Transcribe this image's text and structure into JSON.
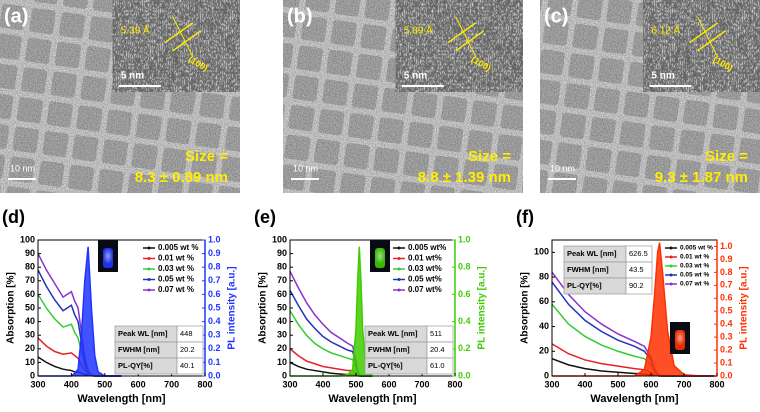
{
  "panels": [
    {
      "label": "(a)",
      "spacing": "5.39 Å",
      "plane": "(100)",
      "inset_scale": "5 nm",
      "scale": "10 nm",
      "size_label": "Size =",
      "size": "8.3 ± 0.89 nm"
    },
    {
      "label": "(b)",
      "spacing": "5.89 Å",
      "plane": "(100)",
      "inset_scale": "5 nm",
      "scale": "10 nm",
      "size_label": "Size =",
      "size": "8.8 ± 1.39 nm"
    },
    {
      "label": "(c)",
      "spacing": "6.12 Å",
      "plane": "(100)",
      "inset_scale": "5 nm",
      "scale": "10 nm",
      "size_label": "Size =",
      "size": "9.3 ± 1.87 nm"
    }
  ],
  "chart_data": [
    {
      "type": "line",
      "panel_label": "(d)",
      "x_label": "Wavelength [nm]",
      "y_label": "Absorption [%]",
      "y2_label": "PL intensity [a.u.]",
      "x": [
        300,
        325,
        350,
        375,
        400,
        410,
        420,
        430,
        440,
        450,
        460,
        470,
        480,
        500,
        550
      ],
      "series": [
        {
          "name": "0.005 wt %",
          "color": "#111111",
          "values": [
            14,
            10,
            7,
            5,
            4,
            3,
            3,
            2,
            1,
            0.5,
            0.2,
            0,
            0,
            0,
            0
          ]
        },
        {
          "name": "0.01 wt %",
          "color": "#e8202a",
          "values": [
            28,
            22,
            18,
            16,
            17,
            15,
            13,
            8,
            4,
            1,
            0.3,
            0,
            0,
            0,
            0
          ]
        },
        {
          "name": "0.03 wt %",
          "color": "#33cc33",
          "values": [
            60,
            50,
            42,
            36,
            38,
            32,
            28,
            18,
            8,
            2,
            0.5,
            0,
            0,
            0,
            0
          ]
        },
        {
          "name": "0.05 wt %",
          "color": "#2233bb",
          "values": [
            78,
            66,
            56,
            48,
            52,
            45,
            40,
            25,
            10,
            3,
            1,
            0,
            0,
            0,
            0
          ]
        },
        {
          "name": "0.07 wt %",
          "color": "#8833cc",
          "values": [
            90,
            78,
            68,
            58,
            62,
            55,
            50,
            32,
            14,
            4,
            1,
            0,
            0,
            0,
            0
          ]
        },
        {
          "color": "#1f35ff",
          "axis": "y2",
          "fill": true,
          "values": [
            0,
            0,
            0,
            0,
            0,
            0.02,
            0.05,
            0.3,
            0.7,
            0.95,
            0.5,
            0.15,
            0.03,
            0,
            0
          ]
        }
      ],
      "xlim": [
        300,
        800
      ],
      "xticks": [
        300,
        400,
        500,
        600,
        700,
        800
      ],
      "ylim": [
        0,
        100
      ],
      "yticks": [
        0,
        10,
        20,
        30,
        40,
        50,
        60,
        70,
        80,
        90,
        100
      ],
      "y2lim": [
        0,
        1
      ],
      "y2ticks": [
        {
          "value": 0,
          "label": "0.0"
        },
        0.1,
        0.2,
        0.3,
        0.4,
        0.5,
        0.6,
        0.7,
        0.8,
        0.9,
        {
          "value": 1,
          "label": "1.0"
        }
      ],
      "legend": "upper right",
      "table": [
        [
          "Peak WL [nm]",
          "448"
        ],
        [
          "FWHM [nm]",
          "20.2"
        ],
        [
          "PL-QY[%]",
          "40.1"
        ]
      ]
    },
    {
      "type": "line",
      "panel_label": "(e)",
      "x_label": "Wavelength [nm]",
      "y_label": "Absorption [%]",
      "y2_label": "PL intensity [a.u.]",
      "x": [
        300,
        325,
        350,
        375,
        400,
        425,
        450,
        475,
        490,
        500,
        505,
        510,
        515,
        520,
        530,
        550
      ],
      "series": [
        {
          "name": "0.005 wt%",
          "color": "#111111",
          "values": [
            10,
            7,
            5,
            4,
            3,
            2,
            1.5,
            1,
            1,
            0.5,
            0.2,
            0,
            0,
            0,
            0,
            0
          ]
        },
        {
          "name": "0.01 wt%",
          "color": "#e8202a",
          "values": [
            20,
            15,
            11,
            9,
            7,
            6,
            5,
            4,
            4,
            2,
            1,
            0.3,
            0,
            0,
            0,
            0
          ]
        },
        {
          "name": "0.03 wt%",
          "color": "#33cc33",
          "values": [
            48,
            38,
            30,
            24,
            20,
            17,
            15,
            13,
            12,
            6,
            2,
            0.5,
            0,
            0,
            0,
            0
          ]
        },
        {
          "name": "0.05 wt%",
          "color": "#2233bb",
          "values": [
            63,
            52,
            42,
            35,
            29,
            25,
            22,
            19,
            18,
            9,
            3,
            1,
            0,
            0,
            0,
            0
          ]
        },
        {
          "name": "0.07 wt%",
          "color": "#8833cc",
          "values": [
            77,
            65,
            54,
            45,
            38,
            32,
            28,
            24,
            22,
            11,
            4,
            1,
            0,
            0,
            0,
            0
          ]
        },
        {
          "color": "#3fcc00",
          "axis": "y2",
          "fill": true,
          "values": [
            0,
            0,
            0,
            0,
            0,
            0,
            0,
            0.01,
            0.05,
            0.35,
            0.7,
            0.95,
            0.7,
            0.35,
            0.05,
            0
          ]
        }
      ],
      "xlim": [
        300,
        800
      ],
      "xticks": [
        300,
        400,
        500,
        600,
        700,
        800
      ],
      "ylim": [
        0,
        100
      ],
      "yticks": [
        0,
        10,
        20,
        30,
        40,
        50,
        60,
        70,
        80,
        90,
        100
      ],
      "y2lim": [
        0,
        1
      ],
      "y2ticks": [
        {
          "value": 0,
          "label": "0.0"
        },
        0.2,
        0.4,
        0.6,
        0.8,
        {
          "value": 1,
          "label": "1.0"
        }
      ],
      "legend": "upper right",
      "table": [
        [
          "Peak WL [nm]",
          "511"
        ],
        [
          "FWHM [nm]",
          "20.4"
        ],
        [
          "PL-QY[%]",
          "61.0"
        ]
      ]
    },
    {
      "type": "line",
      "panel_label": "(f)",
      "x_label": "Wavelength [nm]",
      "y_label": "Absorption [%]",
      "y2_label": "PL intensity [a.u.]",
      "x": [
        300,
        350,
        400,
        450,
        500,
        550,
        580,
        600,
        610,
        620,
        626,
        635,
        650,
        670,
        700,
        750,
        800
      ],
      "series": [
        {
          "name": "0.005 wt %",
          "color": "#111111",
          "values": [
            14,
            9,
            6,
            4,
            3,
            2,
            1.5,
            1,
            0.5,
            0.2,
            0,
            0,
            0,
            0,
            0,
            0,
            0
          ]
        },
        {
          "name": "0.01 wt %",
          "color": "#e8202a",
          "values": [
            26,
            18,
            13,
            10,
            8,
            6,
            5,
            3,
            1,
            0.3,
            0,
            0,
            0,
            0,
            0,
            0,
            0
          ]
        },
        {
          "name": "0.03 wt %",
          "color": "#33cc33",
          "values": [
            58,
            42,
            32,
            25,
            20,
            16,
            14,
            9,
            3,
            1,
            0.3,
            0,
            0,
            0,
            0,
            0,
            0
          ]
        },
        {
          "name": "0.05 wt %",
          "color": "#2233bb",
          "values": [
            76,
            58,
            45,
            36,
            29,
            24,
            20,
            13,
            5,
            1.5,
            0.5,
            0,
            0,
            0,
            0,
            0,
            0
          ]
        },
        {
          "name": "0.07 wt %",
          "color": "#8833cc",
          "values": [
            84,
            66,
            52,
            42,
            34,
            28,
            24,
            15,
            6,
            2,
            0.5,
            0,
            0,
            0,
            0,
            0,
            0
          ]
        },
        {
          "color": "#ff3000",
          "axis": "y2",
          "fill": true,
          "values": [
            0,
            0,
            0,
            0,
            0,
            0,
            0.05,
            0.3,
            0.6,
            0.95,
            1.03,
            0.8,
            0.35,
            0.08,
            0.01,
            0,
            0
          ]
        }
      ],
      "xlim": [
        300,
        800
      ],
      "xticks": [
        300,
        400,
        500,
        600,
        700,
        800
      ],
      "ylim": [
        0,
        110
      ],
      "yticks": [
        0,
        20,
        40,
        60,
        80,
        100
      ],
      "y2lim": [
        0,
        1.05
      ],
      "y2ticks": [
        {
          "value": 0,
          "label": "0.0"
        },
        0.1,
        0.2,
        0.3,
        0.4,
        0.5,
        0.6,
        0.7,
        0.8,
        0.9,
        {
          "value": 1,
          "label": "1.0"
        }
      ],
      "legend": "upper right",
      "table": [
        [
          "Peak WL [nm]",
          "626.5"
        ],
        [
          "FWHM [nm]",
          "43.5"
        ],
        [
          "PL-QY[%]",
          "90.2"
        ]
      ]
    }
  ]
}
